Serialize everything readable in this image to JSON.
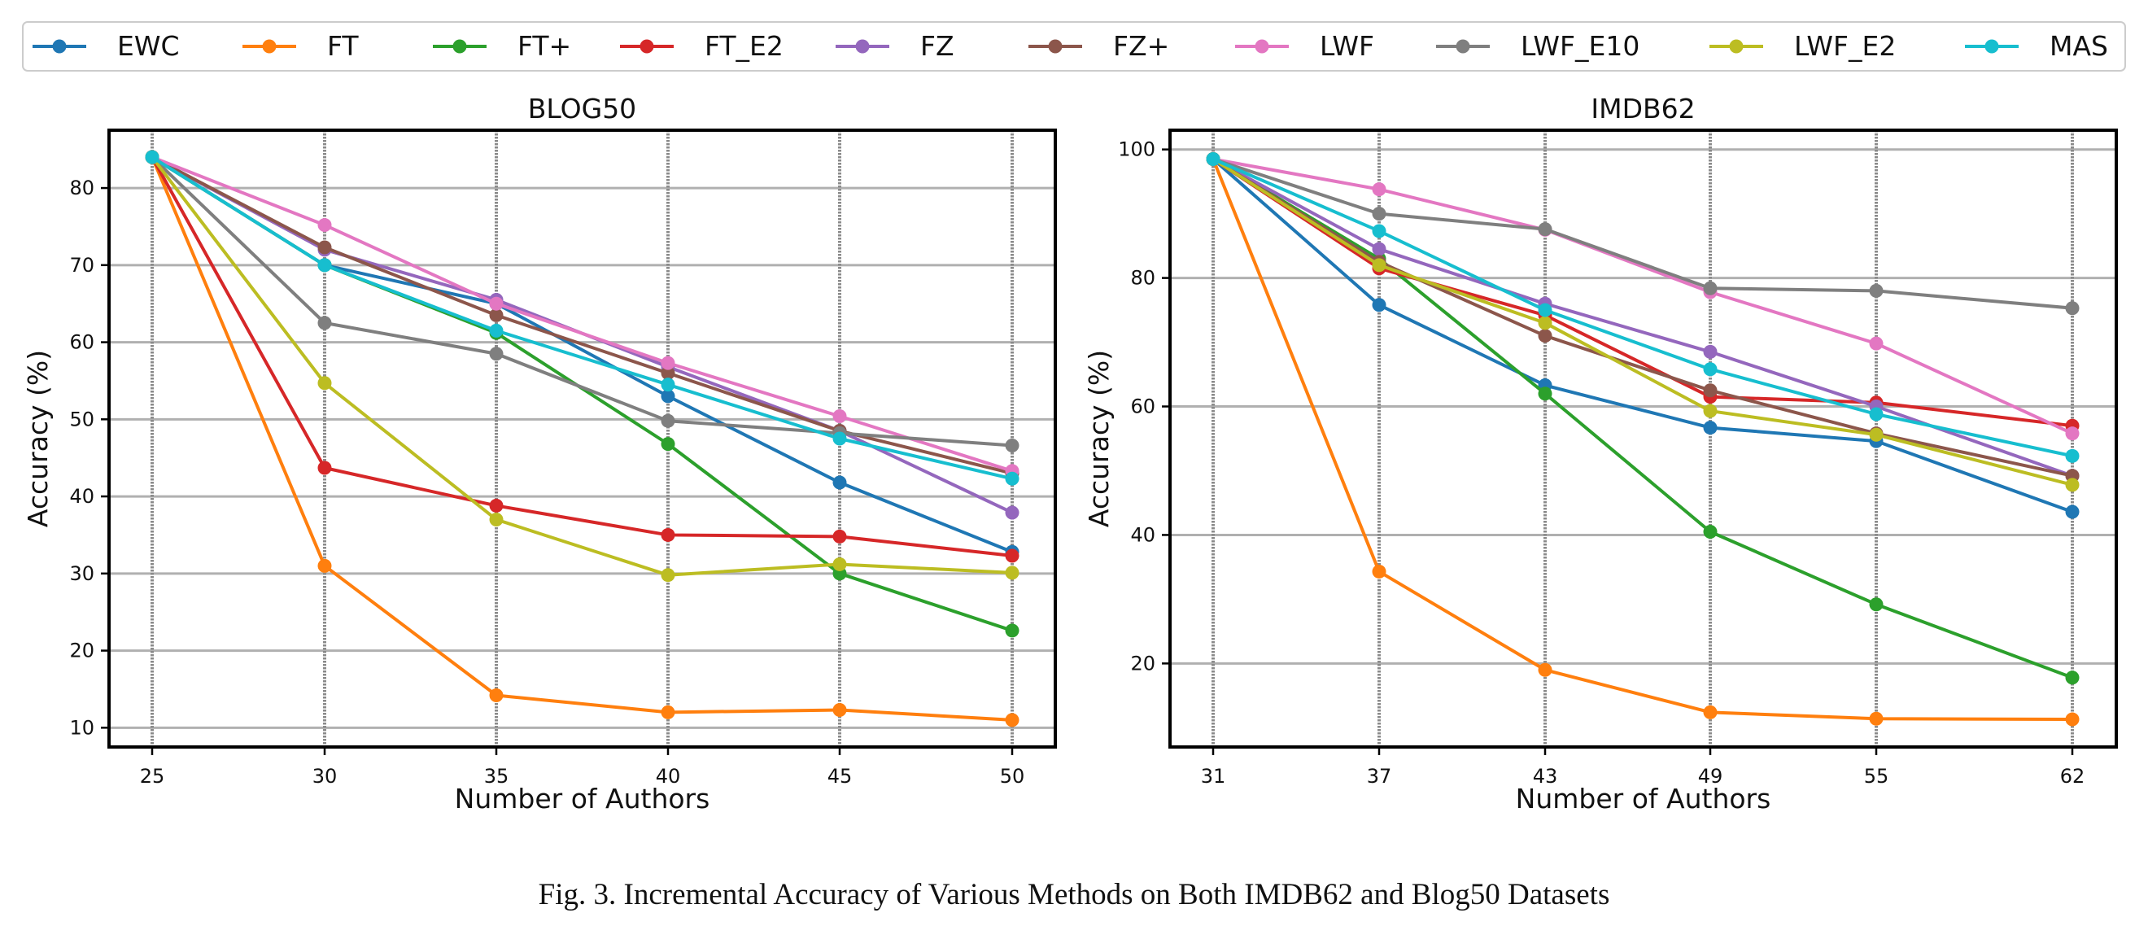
{
  "legend": {
    "items": [
      {
        "name": "EWC",
        "color": "#1f77b4"
      },
      {
        "name": "FT",
        "color": "#ff7f0e"
      },
      {
        "name": "FT+",
        "color": "#2ca02c"
      },
      {
        "name": "FT_E2",
        "color": "#d62728"
      },
      {
        "name": "FZ",
        "color": "#9467bd"
      },
      {
        "name": "FZ+",
        "color": "#8c564b"
      },
      {
        "name": "LWF",
        "color": "#e377c2"
      },
      {
        "name": "LWF_E10",
        "color": "#7f7f7f"
      },
      {
        "name": "LWF_E2",
        "color": "#bcbd22"
      },
      {
        "name": "MAS",
        "color": "#17becf"
      }
    ],
    "placement": "top-center"
  },
  "caption": "Fig. 3.  Incremental Accuracy of Various Methods on Both IMDB62 and Blog50 Datasets",
  "chart_data": [
    {
      "type": "line",
      "title": "BLOG50",
      "xlabel": "Number of Authors",
      "ylabel": "Accuracy (%)",
      "x": [
        25,
        30,
        35,
        40,
        45,
        50
      ],
      "xticks": [
        "25",
        "30",
        "35",
        "40",
        "45",
        "50"
      ],
      "yticks": [
        10,
        20,
        30,
        40,
        50,
        60,
        70,
        80
      ],
      "ylim": [
        7.5,
        87.5
      ],
      "grid": true,
      "series": [
        {
          "name": "EWC",
          "values": [
            84.0,
            70.0,
            65.0,
            53.0,
            41.8,
            32.8
          ]
        },
        {
          "name": "FT",
          "values": [
            84.0,
            31.0,
            14.2,
            12.0,
            12.3,
            11.0
          ]
        },
        {
          "name": "FT+",
          "values": [
            84.0,
            70.0,
            61.2,
            46.8,
            30.0,
            22.6
          ]
        },
        {
          "name": "FT_E2",
          "values": [
            84.0,
            43.7,
            38.8,
            35.0,
            34.8,
            32.3
          ]
        },
        {
          "name": "FZ",
          "values": [
            84.0,
            72.0,
            65.5,
            56.8,
            48.5,
            37.9
          ]
        },
        {
          "name": "FZ+",
          "values": [
            84.0,
            72.3,
            63.5,
            56.0,
            48.5,
            43.0
          ]
        },
        {
          "name": "LWF",
          "values": [
            84.0,
            75.2,
            65.0,
            57.3,
            50.4,
            43.3
          ]
        },
        {
          "name": "LWF_E10",
          "values": [
            84.0,
            62.5,
            58.5,
            49.8,
            48.2,
            46.6
          ]
        },
        {
          "name": "LWF_E2",
          "values": [
            84.0,
            54.7,
            37.0,
            29.8,
            31.2,
            30.1
          ]
        },
        {
          "name": "MAS",
          "values": [
            84.0,
            70.0,
            61.5,
            54.5,
            47.5,
            42.3
          ]
        }
      ]
    },
    {
      "type": "line",
      "title": "IMDB62",
      "xlabel": "Number of Authors",
      "ylabel": "Accuracy (%)",
      "x": [
        31,
        37,
        43,
        49,
        55,
        62
      ],
      "xticks": [
        "31",
        "37",
        "43",
        "49",
        "55",
        "62"
      ],
      "yticks": [
        20,
        40,
        60,
        80,
        100
      ],
      "ylim": [
        7.0,
        103.0
      ],
      "grid": true,
      "series": [
        {
          "name": "EWC",
          "values": [
            98.5,
            75.8,
            63.3,
            56.7,
            54.6,
            43.6
          ]
        },
        {
          "name": "FT",
          "values": [
            98.5,
            34.3,
            19.0,
            12.4,
            11.4,
            11.3
          ]
        },
        {
          "name": "FT+",
          "values": [
            98.5,
            83.0,
            62.0,
            40.5,
            29.2,
            17.8
          ]
        },
        {
          "name": "FT_E2",
          "values": [
            98.5,
            81.5,
            74.2,
            61.5,
            60.6,
            57.0
          ]
        },
        {
          "name": "FZ",
          "values": [
            98.5,
            84.5,
            76.0,
            68.5,
            60.0,
            49.2
          ]
        },
        {
          "name": "FZ+",
          "values": [
            98.5,
            82.5,
            71.0,
            62.5,
            55.8,
            49.2
          ]
        },
        {
          "name": "LWF",
          "values": [
            98.5,
            93.8,
            87.5,
            77.8,
            69.8,
            55.8
          ]
        },
        {
          "name": "LWF_E10",
          "values": [
            98.5,
            90.0,
            87.6,
            78.4,
            78.0,
            75.3
          ]
        },
        {
          "name": "LWF_E2",
          "values": [
            98.5,
            82.0,
            73.0,
            59.3,
            55.6,
            47.8
          ]
        },
        {
          "name": "MAS",
          "values": [
            98.5,
            87.3,
            75.0,
            65.8,
            58.8,
            52.3
          ]
        }
      ]
    }
  ]
}
